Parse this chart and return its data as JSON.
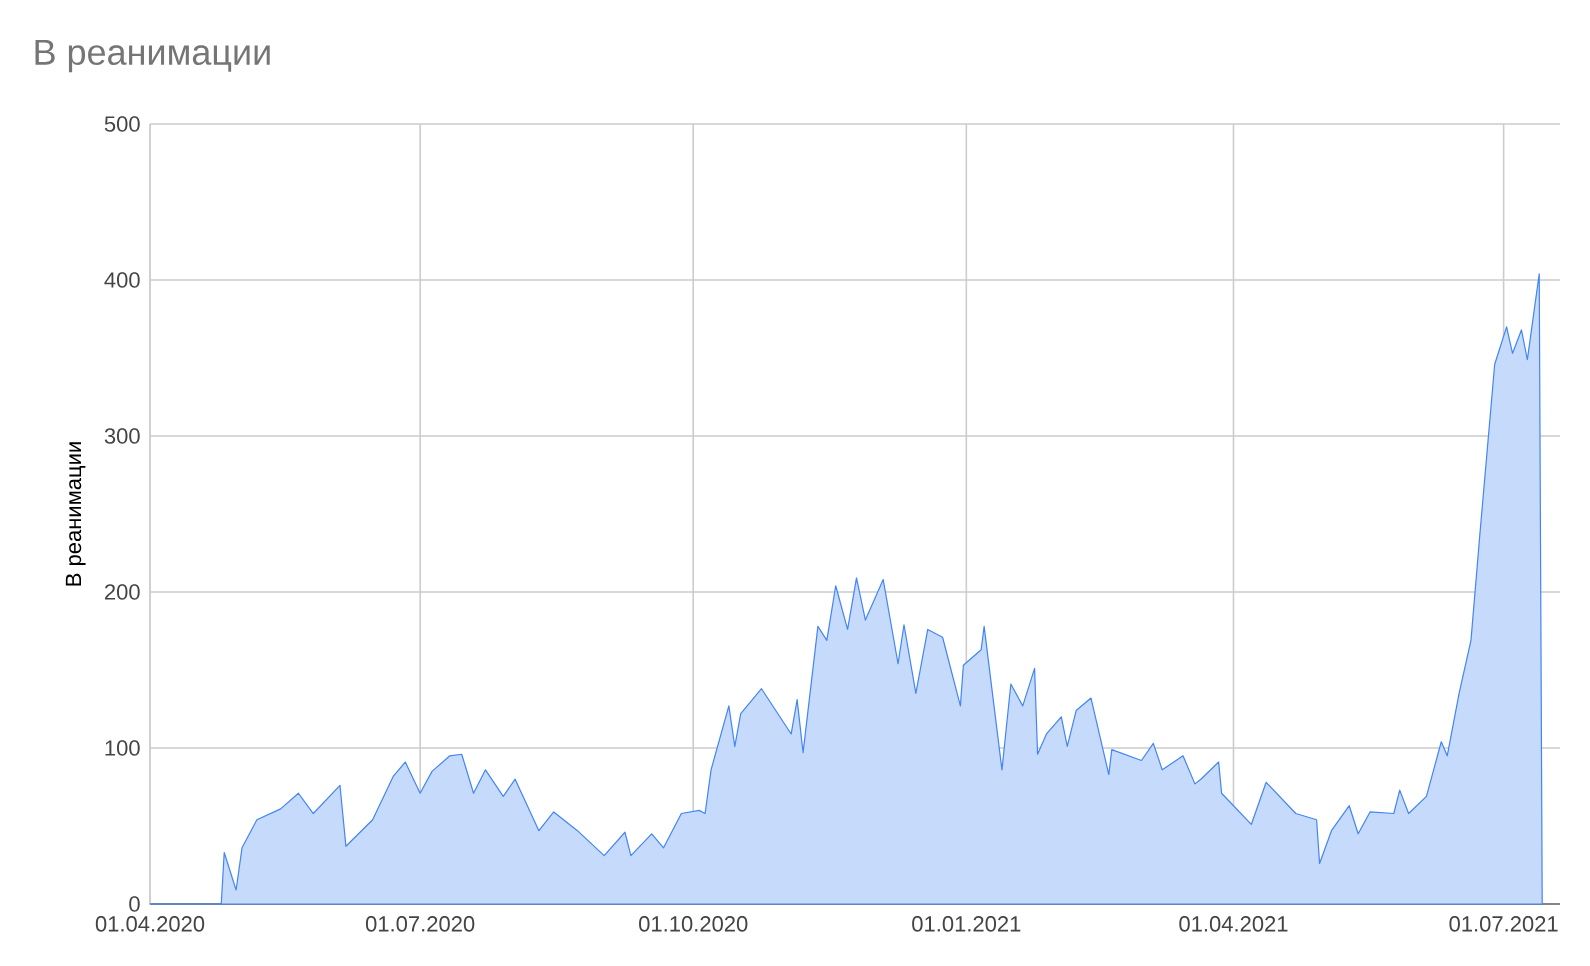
{
  "chart_data": {
    "type": "area",
    "title": "В реанимации",
    "ylabel": "В реанимации",
    "xlim": [
      "2020-04-01",
      "2021-07-20"
    ],
    "ylim": [
      0,
      500
    ],
    "yticks": [
      0,
      100,
      200,
      300,
      400,
      500
    ],
    "xticks": [
      {
        "value": "2020-04-01",
        "label": "01.04.2020"
      },
      {
        "value": "2020-07-01",
        "label": "01.07.2020"
      },
      {
        "value": "2020-10-01",
        "label": "01.10.2020"
      },
      {
        "value": "2021-01-01",
        "label": "01.01.2021"
      },
      {
        "value": "2021-04-01",
        "label": "01.04.2021"
      },
      {
        "value": "2021-07-01",
        "label": "01.07.2021"
      }
    ],
    "grid": true,
    "series": [
      {
        "color": "#4285f4",
        "x": [
          "2020-04-01",
          "2020-04-25",
          "2020-04-26",
          "2020-04-30",
          "2020-05-02",
          "2020-05-07",
          "2020-05-15",
          "2020-05-21",
          "2020-05-26",
          "2020-06-04",
          "2020-06-06",
          "2020-06-15",
          "2020-06-22",
          "2020-06-26",
          "2020-07-01",
          "2020-07-05",
          "2020-07-11",
          "2020-07-15",
          "2020-07-19",
          "2020-07-23",
          "2020-07-29",
          "2020-08-02",
          "2020-08-10",
          "2020-08-15",
          "2020-08-23",
          "2020-09-01",
          "2020-09-08",
          "2020-09-10",
          "2020-09-17",
          "2020-09-21",
          "2020-09-27",
          "2020-10-03",
          "2020-10-05",
          "2020-10-07",
          "2020-10-13",
          "2020-10-15",
          "2020-10-17",
          "2020-10-24",
          "2020-11-03",
          "2020-11-05",
          "2020-11-07",
          "2020-11-12",
          "2020-11-15",
          "2020-11-18",
          "2020-11-22",
          "2020-11-25",
          "2020-11-28",
          "2020-12-04",
          "2020-12-09",
          "2020-12-11",
          "2020-12-15",
          "2020-12-19",
          "2020-12-24",
          "2020-12-30",
          "2020-12-31",
          "2021-01-06",
          "2021-01-07",
          "2021-01-13",
          "2021-01-16",
          "2021-01-20",
          "2021-01-24",
          "2021-01-25",
          "2021-01-28",
          "2021-02-02",
          "2021-02-04",
          "2021-02-07",
          "2021-02-12",
          "2021-02-18",
          "2021-02-19",
          "2021-03-01",
          "2021-03-05",
          "2021-03-08",
          "2021-03-15",
          "2021-03-19",
          "2021-03-21",
          "2021-03-27",
          "2021-03-28",
          "2021-04-07",
          "2021-04-12",
          "2021-04-22",
          "2021-04-29",
          "2021-04-30",
          "2021-05-04",
          "2021-05-10",
          "2021-05-13",
          "2021-05-17",
          "2021-05-25",
          "2021-05-27",
          "2021-05-30",
          "2021-06-05",
          "2021-06-10",
          "2021-06-12",
          "2021-06-16",
          "2021-06-20",
          "2021-06-23",
          "2021-06-28",
          "2021-07-02",
          "2021-07-04",
          "2021-07-07",
          "2021-07-09",
          "2021-07-13",
          "2021-07-14"
        ],
        "values": [
          0,
          0,
          33,
          9,
          36,
          54,
          61,
          71,
          58,
          76,
          37,
          54,
          82,
          91,
          71,
          85,
          95,
          96,
          71,
          86,
          69,
          80,
          47,
          59,
          47,
          31,
          46,
          31,
          45,
          36,
          58,
          60,
          58,
          86,
          127,
          101,
          122,
          138,
          109,
          131,
          97,
          178,
          169,
          204,
          176,
          209,
          182,
          208,
          154,
          179,
          135,
          176,
          171,
          127,
          153,
          163,
          178,
          86,
          141,
          127,
          151,
          96,
          109,
          120,
          101,
          124,
          132,
          83,
          99,
          92,
          103,
          86,
          95,
          77,
          80,
          91,
          71,
          51,
          78,
          58,
          54,
          26,
          47,
          63,
          45,
          59,
          58,
          73,
          58,
          69,
          104,
          95,
          135,
          169,
          237,
          346,
          370,
          353,
          368,
          349,
          404,
          0
        ]
      }
    ]
  }
}
